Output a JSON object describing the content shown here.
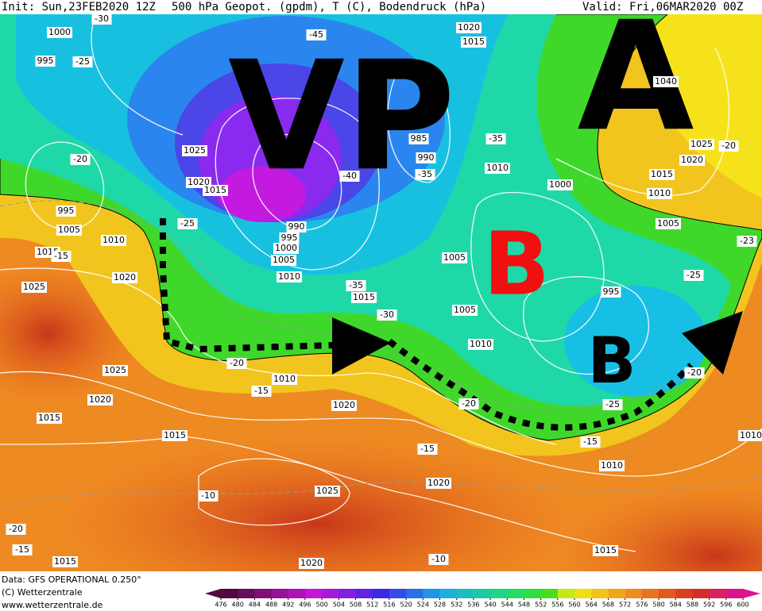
{
  "header": {
    "init": "Init: Sun,23FEB2020 12Z",
    "title": "500 hPa Geopot. (gpdm), T (C), Bodendruck (hPa)",
    "valid": "Valid: Fri,06MAR2020 00Z"
  },
  "big_labels": [
    "VP",
    "A",
    "B",
    "B"
  ],
  "isobar_labels": [
    "1000",
    "995",
    "1025",
    "995",
    "1005",
    "1010",
    "1015",
    "1020",
    "1025",
    "1020",
    "1015",
    "990",
    "995",
    "1000",
    "1005",
    "1010",
    "1015",
    "985",
    "990",
    "1010",
    "1000",
    "1005",
    "1005",
    "1010",
    "995",
    "1005",
    "1010",
    "1015",
    "1020",
    "1025",
    "1040",
    "1020",
    "1015",
    "1025",
    "1020",
    "1015",
    "1015",
    "1010",
    "1020",
    "1020",
    "1025",
    "1010",
    "1015",
    "1020",
    "1015",
    "1010"
  ],
  "temperature_labels": [
    "-30",
    "-25",
    "-20",
    "-25",
    "-15",
    "-20",
    "-15",
    "-35",
    "-30",
    "-35",
    "-35",
    "-40",
    "-45",
    "-20",
    "-23",
    "-25",
    "-20",
    "-25",
    "-20",
    "-15",
    "-15",
    "-10",
    "-20",
    "-15",
    "-10"
  ],
  "footer": {
    "data": "Data: GFS OPERATIONAL 0.250°",
    "copyright": "(C) Wetterzentrale",
    "url": "www.wetterzentrale.de"
  },
  "colorbar": {
    "ticks": [
      476,
      480,
      484,
      488,
      492,
      496,
      500,
      504,
      508,
      512,
      516,
      520,
      524,
      528,
      532,
      536,
      540,
      544,
      548,
      552,
      556,
      560,
      564,
      568,
      572,
      576,
      580,
      584,
      588,
      592,
      596,
      600
    ]
  }
}
